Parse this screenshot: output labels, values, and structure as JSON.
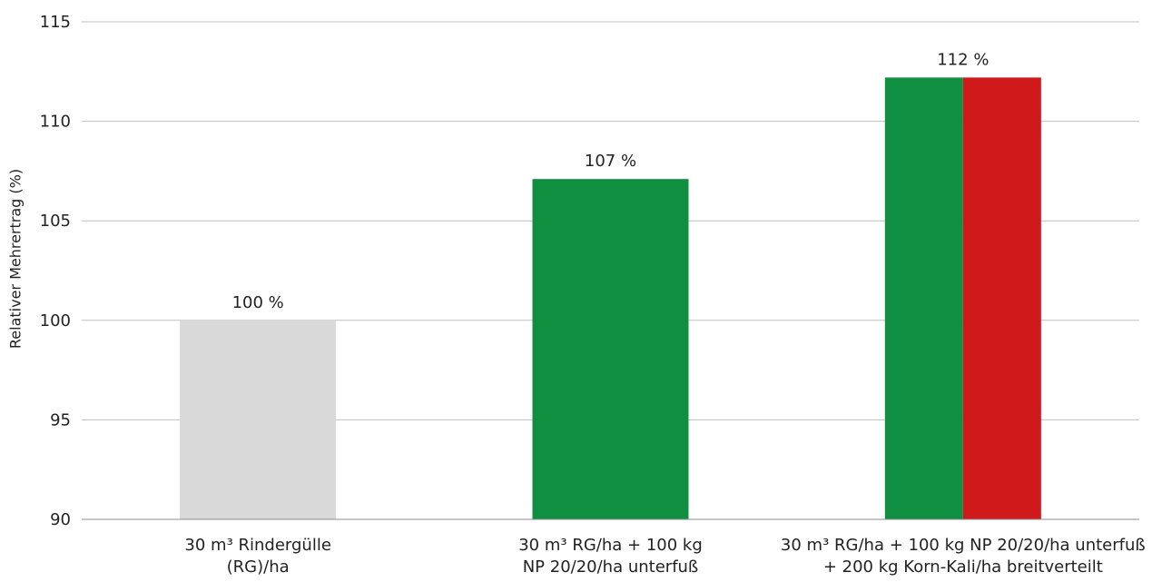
{
  "chart_data": {
    "type": "bar",
    "title": "",
    "xlabel": "",
    "ylabel": "Relativer Mehrertrag (%)",
    "ylim": [
      90,
      115
    ],
    "yticks": [
      "90",
      "95",
      "100",
      "105",
      "110",
      "115"
    ],
    "grid": true,
    "categories": [
      [
        "30 m³ Rindergülle",
        "(RG)/ha"
      ],
      [
        "30 m³ RG/ha + 100 kg",
        "NP 20/20/ha unterfuß"
      ],
      [
        "30 m³ RG/ha + 100 kg NP 20/20/ha unterfuß",
        "+ 200 kg Korn-Kali/ha breitverteilt"
      ]
    ],
    "values": [
      100,
      107.1,
      112.2
    ],
    "value_labels": [
      "100 %",
      "107 %",
      "112 %"
    ],
    "bar_segments": [
      [
        "#d9d9d9"
      ],
      [
        "#118f41"
      ],
      [
        "#118f41",
        "#d0191b"
      ]
    ],
    "colors": {
      "grey": "#d9d9d9",
      "green": "#118f41",
      "red": "#d0191b",
      "grid": "#bfbfbf"
    }
  }
}
